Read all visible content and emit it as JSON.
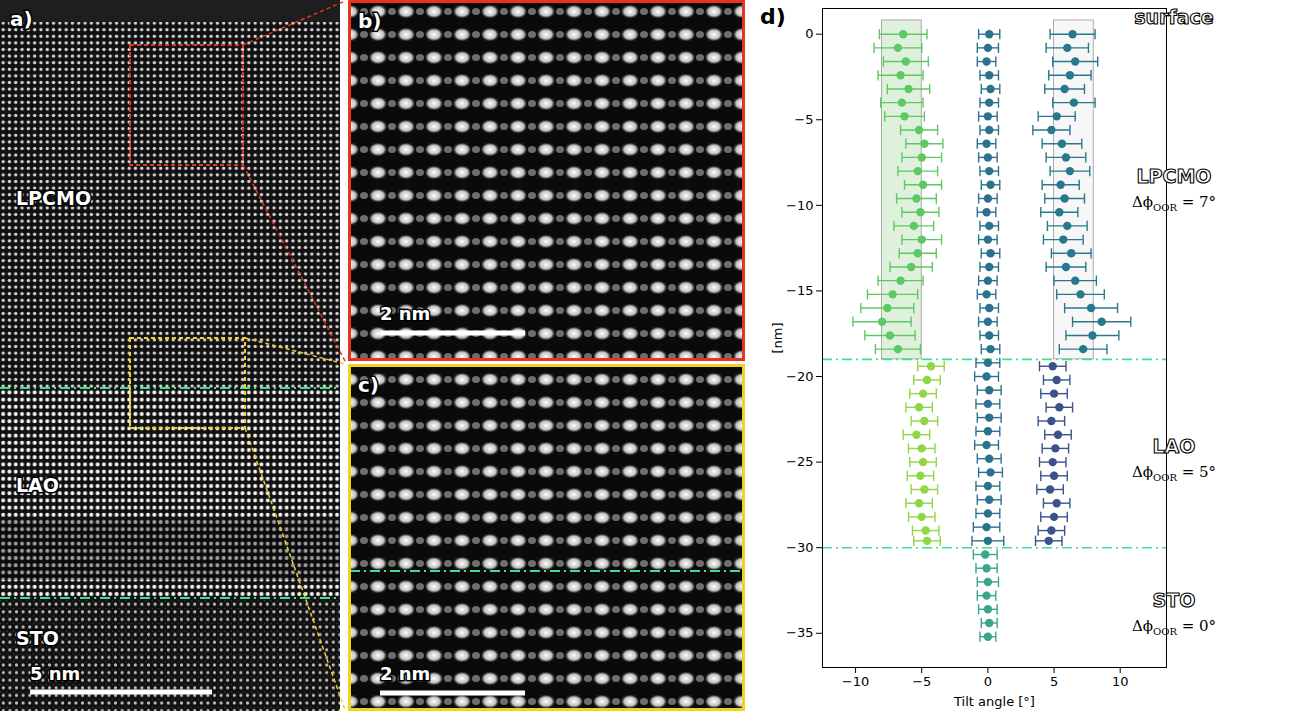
{
  "panels": {
    "a": {
      "label": "a)",
      "layers": [
        "LPCMO",
        "LAO",
        "STO"
      ],
      "scale_bar": "5 nm"
    },
    "b": {
      "label": "b)",
      "scale_bar": "2 nm"
    },
    "c": {
      "label": "c)",
      "scale_bar": "2 nm"
    }
  },
  "chart_data": {
    "type": "scatter",
    "panel_label": "d)",
    "xlabel": "Tilt angle [°]",
    "ylabel": "[nm]",
    "xlim": [
      -12.5,
      13.5
    ],
    "ylim": [
      -37,
      1.5
    ],
    "xticks": [
      -10,
      -5,
      0,
      5,
      10
    ],
    "yticks": [
      0,
      -5,
      -10,
      -15,
      -20,
      -25,
      -30,
      -35
    ],
    "grid": false,
    "marker": "circle",
    "shaded_ranges": [
      {
        "x": [
          -8,
          -5
        ],
        "y": [
          -19,
          0.8
        ],
        "color": "#b9dfb4"
      },
      {
        "x": [
          5,
          8
        ],
        "y": [
          -19,
          0.8
        ],
        "color": "#eeeeee"
      }
    ],
    "hlines": {
      "values": [
        -19,
        -30
      ],
      "color": "#3ae28c",
      "line_style": "dashdot"
    },
    "annotations": [
      {
        "text": "surface"
      },
      {
        "text": "LPCMO",
        "delta": {
          "symbol": "Δϕ",
          "subscript": "OOR",
          "relation": "=",
          "value": 7,
          "unit": "°"
        }
      },
      {
        "text": "LAO",
        "delta": {
          "symbol": "Δϕ",
          "subscript": "OOR",
          "relation": "=",
          "value": 5,
          "unit": "°"
        }
      },
      {
        "text": "STO",
        "delta": {
          "symbol": "Δϕ",
          "subscript": "OOR",
          "relation": "=",
          "value": 0,
          "unit": "°"
        }
      }
    ],
    "series": [
      {
        "color": "#5ec962",
        "y": [
          0,
          -0.8,
          -1.6,
          -2.4,
          -3.2,
          -4,
          -4.8,
          -5.6,
          -6.4,
          -7.2,
          -8,
          -8.8,
          -9.6,
          -10.4,
          -11.2,
          -12,
          -12.8,
          -13.6,
          -14.4,
          -15.2,
          -16,
          -16.8,
          -17.6,
          -18.4
        ],
        "x": [
          -6.4,
          -6.8,
          -6.2,
          -6.6,
          -6.0,
          -6.5,
          -6.3,
          -5.2,
          -4.8,
          -5.0,
          -5.3,
          -4.9,
          -5.4,
          -5.1,
          -5.6,
          -5.0,
          -5.3,
          -5.8,
          -6.6,
          -7.2,
          -7.6,
          -8.0,
          -7.4,
          -6.8
        ],
        "xerr": [
          1.8,
          1.8,
          1.7,
          1.7,
          1.6,
          1.6,
          1.5,
          1.4,
          1.4,
          1.5,
          1.5,
          1.4,
          1.5,
          1.4,
          1.5,
          1.5,
          1.4,
          1.6,
          1.7,
          1.9,
          2.0,
          2.2,
          1.9,
          1.7
        ]
      },
      {
        "color": "#8fd744",
        "y": [
          -19.4,
          -20.2,
          -21,
          -21.8,
          -22.6,
          -23.4,
          -24.2,
          -25,
          -25.8,
          -26.6,
          -27.4,
          -28.2,
          -29,
          -29.6
        ],
        "x": [
          -4.3,
          -4.6,
          -4.9,
          -5.2,
          -4.8,
          -5.4,
          -5.0,
          -4.9,
          -5.1,
          -4.8,
          -5.2,
          -5.0,
          -4.7,
          -4.6
        ],
        "xerr": [
          1.0,
          1.0,
          1.0,
          1.0,
          1.0,
          1.0,
          1.0,
          1.0,
          1.0,
          1.0,
          1.0,
          1.0,
          1.0,
          1.0
        ]
      },
      {
        "color": "#2a788e",
        "y": [
          0,
          -0.8,
          -1.6,
          -2.4,
          -3.2,
          -4,
          -4.8,
          -5.6,
          -6.4,
          -7.2,
          -8,
          -8.8,
          -9.6,
          -10.4,
          -11.2,
          -12,
          -12.8,
          -13.6,
          -14.4,
          -15.2,
          -16,
          -16.8,
          -17.6,
          -18.4
        ],
        "x": [
          6.4,
          6.0,
          6.6,
          6.2,
          5.8,
          6.5,
          5.2,
          4.8,
          5.6,
          5.9,
          6.2,
          5.5,
          5.8,
          5.4,
          6.0,
          5.7,
          6.3,
          5.9,
          6.6,
          7.0,
          7.8,
          8.6,
          7.9,
          7.2
        ],
        "xerr": [
          1.7,
          1.6,
          1.7,
          1.6,
          1.5,
          1.6,
          1.4,
          1.4,
          1.5,
          1.5,
          1.5,
          1.4,
          1.5,
          1.4,
          1.5,
          1.5,
          1.5,
          1.5,
          1.6,
          1.8,
          2.0,
          2.2,
          2.0,
          1.8
        ]
      },
      {
        "color": "#3b528b",
        "y": [
          -19.4,
          -20.2,
          -21,
          -21.8,
          -22.6,
          -23.4,
          -24.2,
          -25,
          -25.8,
          -26.6,
          -27.4,
          -28.2,
          -29,
          -29.6
        ],
        "x": [
          4.9,
          5.2,
          5.0,
          5.4,
          4.8,
          5.3,
          5.1,
          4.9,
          5.0,
          4.7,
          5.2,
          5.0,
          4.8,
          4.6
        ],
        "xerr": [
          1.0,
          1.0,
          1.0,
          1.0,
          1.0,
          1.0,
          1.0,
          1.0,
          1.0,
          1.0,
          1.0,
          1.0,
          1.0,
          1.0
        ]
      },
      {
        "color": "#2c728e",
        "y": [
          0,
          -0.8,
          -1.6,
          -2.4,
          -3.2,
          -4,
          -4.8,
          -5.6,
          -6.4,
          -7.2,
          -8,
          -8.8,
          -9.6,
          -10.4,
          -11.2,
          -12,
          -12.8,
          -13.6,
          -14.4,
          -15.2,
          -16,
          -16.8,
          -17.6,
          -18.4,
          -19.2,
          -20,
          -20.8,
          -21.6,
          -22.4,
          -23.2,
          -24,
          -24.8,
          -25.6,
          -26.4,
          -27.2,
          -28,
          -28.8,
          -29.6
        ],
        "x": [
          0.1,
          0.0,
          -0.1,
          0.1,
          0.2,
          0.1,
          0.0,
          0.1,
          -0.1,
          0.0,
          0.1,
          0.2,
          0.0,
          -0.1,
          0.1,
          0.0,
          0.2,
          0.1,
          0.0,
          -0.1,
          0.1,
          0.0,
          0.1,
          0.2,
          0.0,
          -0.1,
          0.1,
          0.0,
          0.1,
          0.0,
          -0.1,
          0.1,
          0.2,
          0.0,
          0.1,
          0.0,
          -0.1,
          0.0
        ],
        "xerr": [
          0.8,
          0.8,
          0.7,
          0.7,
          0.7,
          0.7,
          0.7,
          0.7,
          0.7,
          0.7,
          0.7,
          0.7,
          0.7,
          0.7,
          0.7,
          0.7,
          0.7,
          0.7,
          0.7,
          0.7,
          0.7,
          0.7,
          0.7,
          0.7,
          0.9,
          0.9,
          0.9,
          0.9,
          0.9,
          0.9,
          0.9,
          0.9,
          0.9,
          0.9,
          0.9,
          0.9,
          1.0,
          1.2
        ]
      },
      {
        "color": "#3aa58b",
        "y": [
          -30.4,
          -31.2,
          -32,
          -32.8,
          -33.6,
          -34.4,
          -35.2
        ],
        "x": [
          -0.2,
          -0.1,
          0.0,
          -0.1,
          0.0,
          0.1,
          0.0
        ],
        "xerr": [
          0.9,
          0.8,
          0.8,
          0.7,
          0.7,
          0.6,
          0.6
        ]
      }
    ]
  }
}
